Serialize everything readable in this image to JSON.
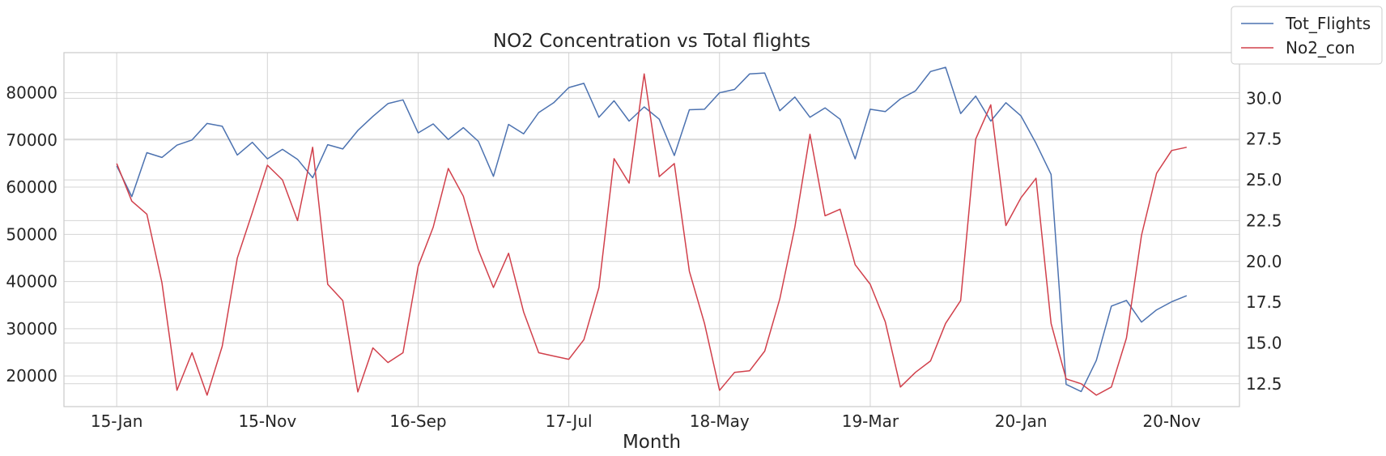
{
  "chart_data": {
    "type": "line",
    "title": "NO2 Concentration vs Total flights",
    "xlabel": "Month",
    "x_tick_labels": [
      "15-Jan",
      "15-Nov",
      "16-Sep",
      "17-Jul",
      "18-May",
      "19-Mar",
      "20-Jan",
      "20-Nov"
    ],
    "x_tick_indices": [
      0,
      10,
      20,
      30,
      40,
      50,
      60,
      70
    ],
    "x_index_range": [
      -3.5,
      74.5
    ],
    "y_left": {
      "ticks": [
        20000,
        30000,
        40000,
        50000,
        60000,
        70000,
        80000
      ],
      "range": [
        13500,
        88500
      ]
    },
    "y_right": {
      "ticks": [
        12.5,
        15.0,
        17.5,
        20.0,
        22.5,
        25.0,
        27.5,
        30.0
      ],
      "range": [
        11.1,
        32.8
      ]
    },
    "grid": true,
    "legend_position": "top-right",
    "series": [
      {
        "name": "Tot_Flights",
        "axis": "left",
        "color": "#4c72b0",
        "values": [
          64500,
          58000,
          67300,
          66300,
          68900,
          70000,
          73500,
          72900,
          66800,
          69500,
          66000,
          68000,
          65900,
          62000,
          69000,
          68100,
          72000,
          75000,
          77700,
          78500,
          71500,
          73400,
          70100,
          72600,
          69700,
          62300,
          73300,
          71300,
          75800,
          77900,
          81100,
          82000,
          74800,
          78300,
          74000,
          77000,
          74400,
          66700,
          76400,
          76500,
          80000,
          80700,
          84000,
          84200,
          76200,
          79100,
          74800,
          76800,
          74400,
          66000,
          76500,
          76000,
          78700,
          80400,
          84500,
          85400,
          75600,
          79300,
          74000,
          77900,
          75100,
          69300,
          62700,
          18200,
          16700,
          23300,
          34800,
          36000,
          31400,
          34000,
          35700,
          37000
        ]
      },
      {
        "name": "No2_con",
        "axis": "right",
        "color": "#d1404b",
        "values": [
          26.0,
          23.7,
          22.9,
          18.7,
          12.1,
          14.4,
          11.8,
          14.8,
          20.2,
          23.0,
          25.9,
          25.0,
          22.5,
          27.0,
          18.6,
          17.6,
          12.0,
          14.7,
          13.8,
          14.4,
          19.7,
          22.1,
          25.7,
          24.0,
          20.7,
          18.4,
          20.5,
          16.9,
          14.4,
          14.2,
          14.0,
          15.2,
          18.4,
          26.3,
          24.8,
          31.5,
          25.2,
          26.0,
          19.4,
          16.2,
          12.1,
          13.2,
          13.3,
          14.5,
          17.7,
          22.1,
          27.8,
          22.8,
          23.2,
          19.8,
          18.6,
          16.3,
          12.3,
          13.2,
          13.9,
          16.2,
          17.6,
          27.5,
          29.6,
          22.2,
          23.9,
          25.1,
          16.2,
          12.8,
          12.5,
          11.8,
          12.3,
          15.3,
          21.6,
          25.4,
          26.8,
          27.0
        ]
      }
    ]
  }
}
